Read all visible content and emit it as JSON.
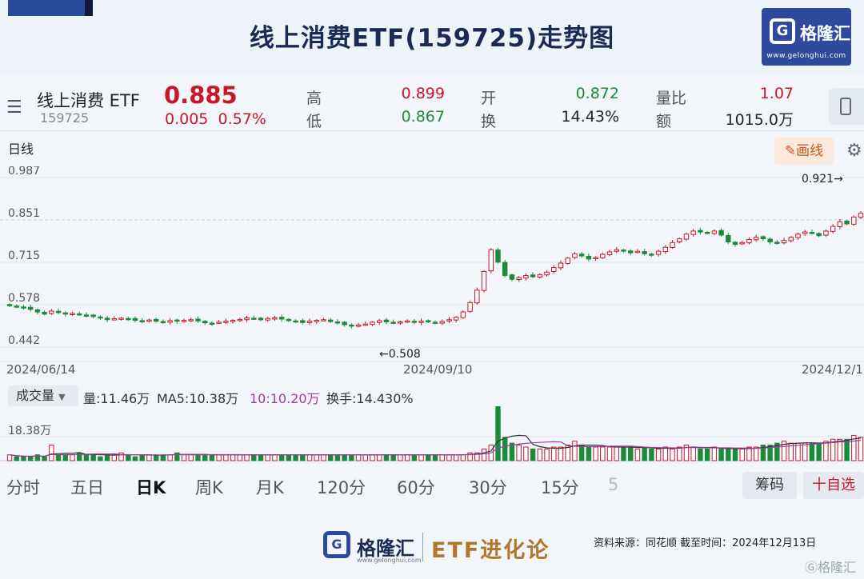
{
  "header": {
    "title": "线上消费ETF(159725)走势图",
    "brand_name": "格隆汇",
    "brand_url": "www.gelonghui.com",
    "brand_letter": "G"
  },
  "quote": {
    "menu_icon": "☰",
    "name": "线上消费 ETF",
    "code": "159725",
    "price": "0.885",
    "change": "0.005",
    "change_pct": "0.57%",
    "high_label": "高",
    "high": "0.899",
    "low_label": "低",
    "low": "0.867",
    "open_label": "开",
    "open": "0.872",
    "turnover_label": "换",
    "turnover": "14.43%",
    "vol_ratio_label": "量比",
    "vol_ratio": "1.07",
    "amount_label": "额",
    "amount": "1015.0万"
  },
  "toolbar": {
    "period": "日线",
    "draw_label": "✎画线",
    "settings_icon": "⚙"
  },
  "chart_data": {
    "type": "candlestick",
    "y_ticks": [
      "0.987",
      "0.851",
      "0.715",
      "0.578",
      "0.442"
    ],
    "x_ticks": [
      "2024/06/14",
      "2024/09/10",
      "2024/12/1"
    ],
    "high_marker": "0.921→",
    "low_marker": "←0.508",
    "ylim": [
      0.442,
      0.987
    ],
    "closes": [
      0.575,
      0.572,
      0.568,
      0.563,
      0.555,
      0.548,
      0.558,
      0.553,
      0.548,
      0.55,
      0.546,
      0.543,
      0.54,
      0.536,
      0.53,
      0.533,
      0.535,
      0.532,
      0.528,
      0.526,
      0.529,
      0.525,
      0.523,
      0.527,
      0.525,
      0.528,
      0.53,
      0.526,
      0.52,
      0.518,
      0.522,
      0.525,
      0.528,
      0.531,
      0.536,
      0.533,
      0.53,
      0.534,
      0.536,
      0.532,
      0.527,
      0.525,
      0.521,
      0.525,
      0.528,
      0.53,
      0.524,
      0.52,
      0.514,
      0.51,
      0.513,
      0.516,
      0.522,
      0.527,
      0.523,
      0.52,
      0.523,
      0.526,
      0.522,
      0.525,
      0.523,
      0.52,
      0.524,
      0.53,
      0.538,
      0.555,
      0.585,
      0.625,
      0.685,
      0.755,
      0.715,
      0.672,
      0.66,
      0.665,
      0.672,
      0.668,
      0.675,
      0.683,
      0.698,
      0.712,
      0.728,
      0.742,
      0.735,
      0.725,
      0.73,
      0.74,
      0.748,
      0.755,
      0.752,
      0.745,
      0.75,
      0.742,
      0.738,
      0.75,
      0.763,
      0.778,
      0.79,
      0.805,
      0.815,
      0.812,
      0.808,
      0.815,
      0.802,
      0.78,
      0.772,
      0.778,
      0.788,
      0.795,
      0.79,
      0.78,
      0.775,
      0.785,
      0.795,
      0.805,
      0.812,
      0.808,
      0.8,
      0.815,
      0.83,
      0.845,
      0.838,
      0.86,
      0.872
    ],
    "volume_label": "成交量",
    "volume_stats": {
      "vol": "量:11.46万",
      "ma5": "MA5:10.38万",
      "ma10": "10:10.20万",
      "turnover": "换手:14.430%"
    },
    "volume_tick": "18.38万",
    "volumes": [
      3,
      2,
      2,
      2,
      3,
      2,
      8,
      3,
      3,
      3,
      4,
      3,
      3,
      2,
      3,
      3,
      4,
      3,
      2,
      3,
      3,
      3,
      3,
      3,
      4,
      3,
      3,
      3,
      3,
      3,
      3,
      3,
      3,
      3,
      3,
      3,
      3,
      3,
      3,
      3,
      3,
      3,
      3,
      3,
      3,
      3,
      3,
      3,
      3,
      3,
      3,
      3,
      3,
      3,
      3,
      3,
      3,
      3,
      3,
      3,
      3,
      3,
      3,
      3,
      3,
      3,
      4,
      4,
      6,
      8,
      28,
      12,
      9,
      8,
      7,
      6,
      6,
      6,
      7,
      7,
      8,
      10,
      8,
      7,
      7,
      7,
      7,
      7,
      7,
      7,
      6,
      7,
      6,
      6,
      7,
      6,
      7,
      8,
      7,
      6,
      6,
      7,
      6,
      6,
      6,
      6,
      7,
      7,
      8,
      8,
      9,
      10,
      9,
      9,
      9,
      9,
      9,
      10,
      11,
      11,
      11,
      13,
      12
    ],
    "volume_max": 28
  },
  "colors": {
    "up": "#c8172a",
    "down": "#1d8a3a",
    "ma5": "#333333",
    "ma10": "#a03ca0"
  },
  "tabs": [
    "分时",
    "五日",
    "日K",
    "周K",
    "月K",
    "120分",
    "60分",
    "30分",
    "15分",
    "5"
  ],
  "tab_active": "日K",
  "actions": {
    "chips": "筹码",
    "watch": "十自选"
  },
  "footer": {
    "brand_name": "格隆汇",
    "brand_url": "www.gelonghui.com",
    "slogan": "ETF进化论",
    "source": "资料来源：同花顺  截至时间：2024年12月13日",
    "watermark": "Ⓖ格隆汇"
  }
}
